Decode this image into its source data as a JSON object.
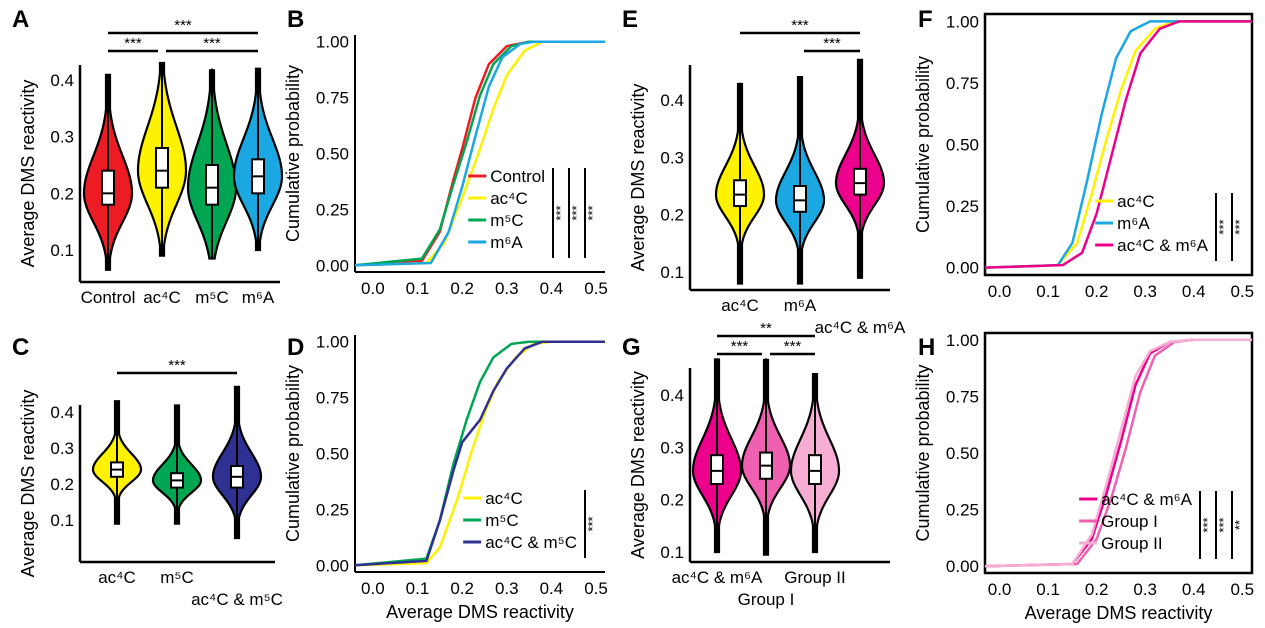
{
  "chart_data": [
    {
      "panel": "A",
      "type": "violin",
      "ylabel": "Average DMS reactivity",
      "ylim": [
        0.05,
        0.45
      ],
      "yticks": [
        0.1,
        0.2,
        0.3,
        0.4
      ],
      "groups": [
        {
          "label": "Control",
          "color": "#ed1c24",
          "median": 0.2,
          "q1": 0.18,
          "q3": 0.24,
          "min": 0.065,
          "max": 0.41
        },
        {
          "label": "ac⁴C",
          "color": "#fff200",
          "median": 0.24,
          "q1": 0.21,
          "q3": 0.28,
          "min": 0.09,
          "max": 0.43
        },
        {
          "label": "m⁵C",
          "color": "#00a651",
          "median": 0.21,
          "q1": 0.18,
          "q3": 0.25,
          "min": 0.085,
          "max": 0.42
        },
        {
          "label": "m⁶A",
          "color": "#1ba7e1",
          "median": 0.23,
          "q1": 0.2,
          "q3": 0.26,
          "min": 0.1,
          "max": 0.42
        }
      ],
      "significance": [
        {
          "from": 0,
          "to": 3,
          "label": "***"
        },
        {
          "from": 0,
          "to": 1,
          "label": "***"
        },
        {
          "from": 1,
          "to": 3,
          "label": "***"
        }
      ]
    },
    {
      "panel": "B",
      "type": "line",
      "xlabel": "",
      "ylabel": "Cumulative probability",
      "xlim": [
        -0.04,
        0.52
      ],
      "ylim": [
        -0.03,
        1.03
      ],
      "xticks": [
        0.0,
        0.1,
        0.2,
        0.3,
        0.4,
        0.5
      ],
      "yticks": [
        "0.00",
        "0.25",
        "0.50",
        "0.75",
        "1.00"
      ],
      "series": [
        {
          "name": "Control",
          "color": "#ed1c24",
          "points": [
            [
              -0.04,
              0
            ],
            [
              0.11,
              0.02
            ],
            [
              0.15,
              0.15
            ],
            [
              0.18,
              0.38
            ],
            [
              0.2,
              0.52
            ],
            [
              0.23,
              0.75
            ],
            [
              0.26,
              0.9
            ],
            [
              0.3,
              0.98
            ],
            [
              0.35,
              1
            ],
            [
              0.52,
              1
            ]
          ]
        },
        {
          "name": "ac⁴C",
          "color": "#fff200",
          "points": [
            [
              -0.04,
              0
            ],
            [
              0.12,
              0.01
            ],
            [
              0.16,
              0.1
            ],
            [
              0.2,
              0.3
            ],
            [
              0.24,
              0.52
            ],
            [
              0.27,
              0.7
            ],
            [
              0.3,
              0.85
            ],
            [
              0.34,
              0.96
            ],
            [
              0.38,
              1
            ],
            [
              0.52,
              1
            ]
          ]
        },
        {
          "name": "m⁵C",
          "color": "#00a651",
          "points": [
            [
              -0.04,
              0
            ],
            [
              0.11,
              0.03
            ],
            [
              0.15,
              0.16
            ],
            [
              0.18,
              0.36
            ],
            [
              0.21,
              0.55
            ],
            [
              0.24,
              0.76
            ],
            [
              0.27,
              0.9
            ],
            [
              0.31,
              0.98
            ],
            [
              0.35,
              1
            ],
            [
              0.52,
              1
            ]
          ]
        },
        {
          "name": "m⁶A",
          "color": "#1ba7e1",
          "points": [
            [
              -0.04,
              0
            ],
            [
              0.13,
              0.01
            ],
            [
              0.17,
              0.15
            ],
            [
              0.2,
              0.35
            ],
            [
              0.23,
              0.58
            ],
            [
              0.26,
              0.8
            ],
            [
              0.29,
              0.93
            ],
            [
              0.33,
              0.99
            ],
            [
              0.36,
              1
            ],
            [
              0.52,
              1
            ]
          ]
        }
      ],
      "legend": "bottom-right",
      "significance": [
        "***",
        "***",
        "***"
      ]
    },
    {
      "panel": "C",
      "type": "violin",
      "ylabel": "Average DMS reactivity",
      "ylim": [
        0.04,
        0.48
      ],
      "yticks": [
        0.1,
        0.2,
        0.3,
        0.4
      ],
      "groups": [
        {
          "label": "ac⁴C",
          "color": "#fff200",
          "median": 0.24,
          "q1": 0.22,
          "q3": 0.26,
          "min": 0.09,
          "max": 0.43
        },
        {
          "label": "m⁵C",
          "color": "#00a651",
          "median": 0.21,
          "q1": 0.19,
          "q3": 0.23,
          "min": 0.09,
          "max": 0.42
        },
        {
          "label": "ac⁴C & m⁵C",
          "color": "#2e3192",
          "median": 0.22,
          "q1": 0.19,
          "q3": 0.25,
          "min": 0.05,
          "max": 0.47
        }
      ],
      "significance": [
        {
          "from": 0,
          "to": 2,
          "label": "***"
        }
      ]
    },
    {
      "panel": "D",
      "type": "line",
      "xlabel": "Average DMS reactivity",
      "ylabel": "Cumulative probability",
      "xlim": [
        -0.04,
        0.52
      ],
      "ylim": [
        -0.03,
        1.03
      ],
      "xticks": [
        0.0,
        0.1,
        0.2,
        0.3,
        0.4,
        0.5
      ],
      "yticks": [
        "0.00",
        "0.25",
        "0.50",
        "0.75",
        "1.00"
      ],
      "series": [
        {
          "name": "ac⁴C",
          "color": "#fff200",
          "points": [
            [
              -0.04,
              0
            ],
            [
              0.12,
              0.01
            ],
            [
              0.15,
              0.08
            ],
            [
              0.19,
              0.3
            ],
            [
              0.22,
              0.5
            ],
            [
              0.25,
              0.68
            ],
            [
              0.28,
              0.82
            ],
            [
              0.32,
              0.93
            ],
            [
              0.36,
              0.99
            ],
            [
              0.4,
              1
            ],
            [
              0.52,
              1
            ]
          ]
        },
        {
          "name": "m⁵C",
          "color": "#00a651",
          "points": [
            [
              -0.04,
              0
            ],
            [
              0.12,
              0.03
            ],
            [
              0.15,
              0.2
            ],
            [
              0.18,
              0.45
            ],
            [
              0.21,
              0.65
            ],
            [
              0.24,
              0.82
            ],
            [
              0.27,
              0.93
            ],
            [
              0.31,
              0.99
            ],
            [
              0.35,
              1
            ],
            [
              0.52,
              1
            ]
          ]
        },
        {
          "name": "ac⁴C & m⁵C",
          "color": "#2e3192",
          "points": [
            [
              -0.04,
              0
            ],
            [
              0.12,
              0.02
            ],
            [
              0.15,
              0.2
            ],
            [
              0.18,
              0.42
            ],
            [
              0.2,
              0.55
            ],
            [
              0.24,
              0.65
            ],
            [
              0.27,
              0.78
            ],
            [
              0.3,
              0.88
            ],
            [
              0.34,
              0.97
            ],
            [
              0.38,
              1
            ],
            [
              0.52,
              1
            ]
          ]
        }
      ],
      "legend": "bottom-right",
      "significance": [
        "***"
      ]
    },
    {
      "panel": "E",
      "type": "violin",
      "ylabel": "Average DMS reactivity",
      "ylim": [
        0.06,
        0.48
      ],
      "yticks": [
        0.1,
        0.2,
        0.3,
        0.4
      ],
      "groups": [
        {
          "label": "ac⁴C",
          "color": "#fff200",
          "median": 0.235,
          "q1": 0.215,
          "q3": 0.26,
          "min": 0.08,
          "max": 0.43
        },
        {
          "label": "m⁶A",
          "color": "#1ba7e1",
          "median": 0.225,
          "q1": 0.205,
          "q3": 0.25,
          "min": 0.08,
          "max": 0.44
        },
        {
          "label": "ac⁴C & m⁶A",
          "color": "#ec008c",
          "median": 0.255,
          "q1": 0.235,
          "q3": 0.28,
          "min": 0.09,
          "max": 0.47
        }
      ],
      "significance": [
        {
          "from": 0,
          "to": 2,
          "label": "***"
        },
        {
          "from": 1,
          "to": 2,
          "label": "***"
        }
      ]
    },
    {
      "panel": "F",
      "type": "line",
      "xlabel": "",
      "ylabel": "Cumulative probability",
      "xlim": [
        -0.03,
        0.52
      ],
      "ylim": [
        -0.03,
        1.03
      ],
      "xticks": [
        0.0,
        0.1,
        0.2,
        0.3,
        0.4,
        0.5
      ],
      "yticks": [
        "0.00",
        "0.25",
        "0.50",
        "0.75",
        "1.00"
      ],
      "series": [
        {
          "name": "ac⁴C",
          "color": "#fff200",
          "points": [
            [
              -0.03,
              0
            ],
            [
              0.12,
              0.01
            ],
            [
              0.16,
              0.1
            ],
            [
              0.19,
              0.3
            ],
            [
              0.22,
              0.52
            ],
            [
              0.25,
              0.72
            ],
            [
              0.28,
              0.88
            ],
            [
              0.32,
              0.97
            ],
            [
              0.36,
              1
            ],
            [
              0.52,
              1
            ]
          ]
        },
        {
          "name": "m⁶A",
          "color": "#1ba7e1",
          "points": [
            [
              -0.03,
              0
            ],
            [
              0.12,
              0.01
            ],
            [
              0.15,
              0.1
            ],
            [
              0.18,
              0.35
            ],
            [
              0.21,
              0.62
            ],
            [
              0.24,
              0.85
            ],
            [
              0.27,
              0.96
            ],
            [
              0.31,
              1
            ],
            [
              0.52,
              1
            ]
          ]
        },
        {
          "name": "ac⁴C & m⁶A",
          "color": "#ec008c",
          "points": [
            [
              -0.03,
              0
            ],
            [
              0.13,
              0.01
            ],
            [
              0.17,
              0.06
            ],
            [
              0.2,
              0.22
            ],
            [
              0.23,
              0.45
            ],
            [
              0.26,
              0.68
            ],
            [
              0.29,
              0.87
            ],
            [
              0.33,
              0.97
            ],
            [
              0.37,
              1
            ],
            [
              0.52,
              1
            ]
          ]
        }
      ],
      "legend": "bottom-right",
      "significance": [
        "***",
        "***"
      ]
    },
    {
      "panel": "G",
      "type": "violin",
      "ylabel": "Average DMS reactivity",
      "ylim": [
        0.08,
        0.48
      ],
      "yticks": [
        0.1,
        0.2,
        0.3,
        0.4
      ],
      "groups": [
        {
          "label": "ac⁴C & m⁶A",
          "color": "#ec008c",
          "median": 0.255,
          "q1": 0.23,
          "q3": 0.285,
          "min": 0.1,
          "max": 0.47
        },
        {
          "label": "Group I",
          "color": "#f060b0",
          "median": 0.265,
          "q1": 0.24,
          "q3": 0.29,
          "min": 0.095,
          "max": 0.47
        },
        {
          "label": "Group II",
          "color": "#f7aed5",
          "median": 0.255,
          "q1": 0.23,
          "q3": 0.285,
          "min": 0.1,
          "max": 0.44
        }
      ],
      "significance": [
        {
          "from": 0,
          "to": 2,
          "label": "**"
        },
        {
          "from": 0,
          "to": 1,
          "label": "***"
        },
        {
          "from": 1,
          "to": 2,
          "label": "***"
        }
      ]
    },
    {
      "panel": "H",
      "type": "line",
      "xlabel": "Average DMS reactivity",
      "ylabel": "Cumulative probability",
      "xlim": [
        -0.03,
        0.52
      ],
      "ylim": [
        -0.03,
        1.03
      ],
      "xticks": [
        0.0,
        0.1,
        0.2,
        0.3,
        0.4,
        0.5
      ],
      "yticks": [
        "0.00",
        "0.25",
        "0.50",
        "0.75",
        "1.00"
      ],
      "series": [
        {
          "name": "ac⁴C & m⁶A",
          "color": "#ec008c",
          "points": [
            [
              -0.03,
              0
            ],
            [
              0.15,
              0.01
            ],
            [
              0.19,
              0.12
            ],
            [
              0.22,
              0.32
            ],
            [
              0.25,
              0.55
            ],
            [
              0.28,
              0.8
            ],
            [
              0.31,
              0.94
            ],
            [
              0.35,
              0.99
            ],
            [
              0.4,
              1
            ],
            [
              0.52,
              1
            ]
          ]
        },
        {
          "name": "Group I",
          "color": "#f060b0",
          "points": [
            [
              -0.03,
              0
            ],
            [
              0.16,
              0.01
            ],
            [
              0.2,
              0.12
            ],
            [
              0.23,
              0.3
            ],
            [
              0.26,
              0.52
            ],
            [
              0.29,
              0.77
            ],
            [
              0.32,
              0.93
            ],
            [
              0.36,
              0.99
            ],
            [
              0.4,
              1
            ],
            [
              0.52,
              1
            ]
          ]
        },
        {
          "name": "Group II",
          "color": "#f7aed5",
          "points": [
            [
              -0.03,
              0
            ],
            [
              0.15,
              0.01
            ],
            [
              0.19,
              0.14
            ],
            [
              0.22,
              0.36
            ],
            [
              0.25,
              0.6
            ],
            [
              0.28,
              0.84
            ],
            [
              0.31,
              0.95
            ],
            [
              0.35,
              0.99
            ],
            [
              0.4,
              1
            ],
            [
              0.52,
              1
            ]
          ]
        }
      ],
      "legend": "bottom-right",
      "significance": [
        "***",
        "***",
        "**"
      ]
    }
  ]
}
